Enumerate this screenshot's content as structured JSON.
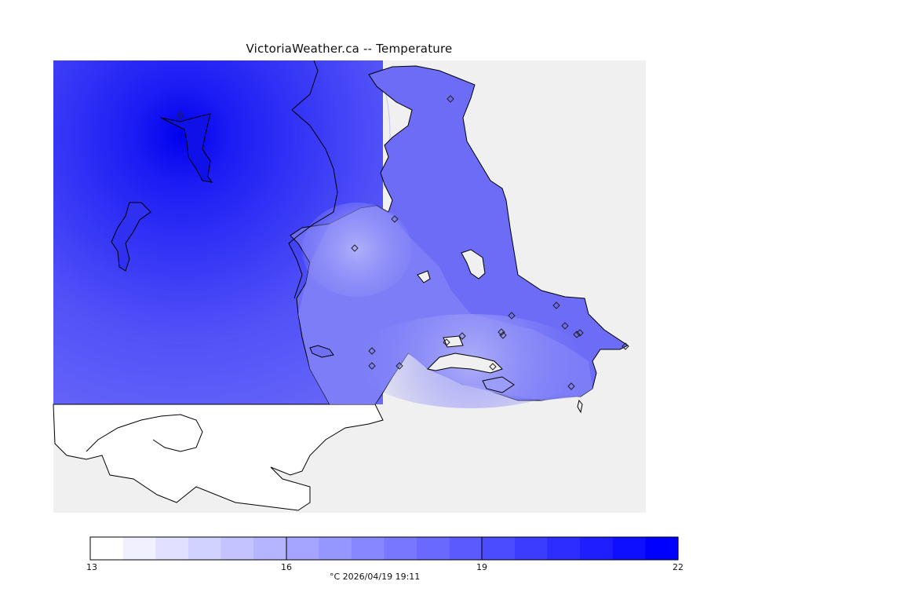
{
  "title": "VictoriaWeather.ca -- Temperature",
  "legend": {
    "ticks": [
      "13",
      "16",
      "19",
      "22"
    ],
    "min": 13,
    "max": 22,
    "caption": "°C  2026/04/19 19:11",
    "low_color": "#ffffff",
    "high_color": "#0000ff"
  },
  "map": {
    "background_color": "#f0f0f0",
    "land_color": "#ffffff",
    "stations_marker": "diamond",
    "station_count": 19
  }
}
